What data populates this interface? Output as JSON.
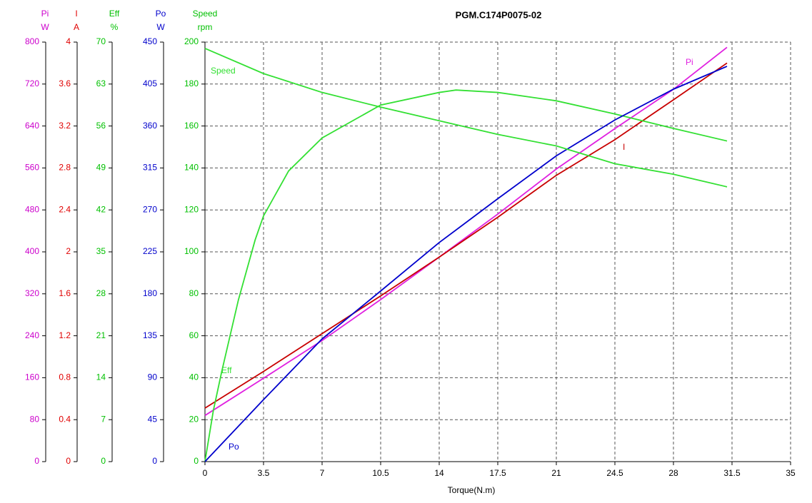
{
  "chart_data": {
    "type": "line",
    "title": "PGM.C174P0075-02",
    "x_label": "Torque(N.m)",
    "xlim": [
      0,
      35
    ],
    "xticks": [
      0,
      3.5,
      7,
      10.5,
      14,
      17.5,
      21,
      24.5,
      28,
      31.5,
      35
    ],
    "grid": true,
    "y_axes": [
      {
        "name": "Pi",
        "unit": "W",
        "color": "#cc00cc",
        "ylim": [
          0,
          800
        ],
        "yticks": [
          0,
          80,
          160,
          240,
          320,
          400,
          480,
          560,
          640,
          720,
          800
        ],
        "series": {
          "name": "Pi",
          "color": "#e020e0",
          "x": [
            0,
            3.5,
            7,
            10.5,
            14,
            17.5,
            21,
            24.5,
            28,
            31.2
          ],
          "values": [
            88,
            159,
            231,
            309,
            390,
            472,
            558,
            635,
            710,
            790
          ]
        }
      },
      {
        "name": "I",
        "unit": "A",
        "color": "#e00000",
        "ylim": [
          0,
          4
        ],
        "yticks": [
          0,
          0.4,
          0.8,
          1.2,
          1.6,
          2,
          2.4,
          2.8,
          3.2,
          3.6,
          4
        ],
        "series": {
          "name": "I",
          "color": "#c80000",
          "x": [
            0,
            3.5,
            7,
            10.5,
            14,
            17.5,
            21,
            24.5,
            28,
            31.2
          ],
          "values": [
            0.51,
            0.86,
            1.22,
            1.58,
            1.95,
            2.33,
            2.73,
            3.07,
            3.45,
            3.8
          ]
        }
      },
      {
        "name": "Eff",
        "unit": "%",
        "color": "#00c000",
        "ylim": [
          0,
          70
        ],
        "yticks": [
          0,
          7,
          14,
          21,
          28,
          35,
          42,
          49,
          56,
          63,
          70
        ],
        "series": {
          "name": "Eff",
          "color": "#33e033",
          "x": [
            0,
            0.5,
            1,
            1.5,
            2,
            3,
            3.5,
            5,
            7,
            10.5,
            14,
            15,
            17.5,
            21,
            24.5,
            28,
            31.2
          ],
          "values": [
            0,
            8.5,
            15,
            21,
            27,
            37,
            41,
            48.5,
            54,
            59.5,
            61.6,
            62,
            61.6,
            60.2,
            58,
            55.6,
            53.5
          ]
        }
      },
      {
        "name": "Po",
        "unit": "W",
        "color": "#0000cc",
        "ylim": [
          0,
          450
        ],
        "yticks": [
          0,
          45,
          90,
          135,
          180,
          225,
          270,
          315,
          360,
          405,
          450
        ],
        "series": {
          "name": "Po",
          "color": "#0000cc",
          "x": [
            0,
            3.5,
            7,
            10.5,
            14,
            17.5,
            21,
            24.5,
            28,
            31.2
          ],
          "values": [
            0,
            66.5,
            131.6,
            183,
            235,
            282,
            328,
            366.5,
            399.5,
            424
          ]
        }
      },
      {
        "name": "Speed",
        "unit": "rpm",
        "color": "#00c000",
        "ylim": [
          0,
          200
        ],
        "yticks": [
          0,
          20,
          40,
          60,
          80,
          100,
          120,
          140,
          160,
          180,
          200
        ],
        "series": {
          "name": "Speed",
          "color": "#33e033",
          "x": [
            0,
            3.5,
            7,
            10.5,
            14,
            17.5,
            21,
            24.5,
            28,
            31.2
          ],
          "values": [
            197,
            185,
            176,
            169,
            162.5,
            156,
            150.5,
            142,
            137,
            131
          ]
        }
      }
    ]
  }
}
